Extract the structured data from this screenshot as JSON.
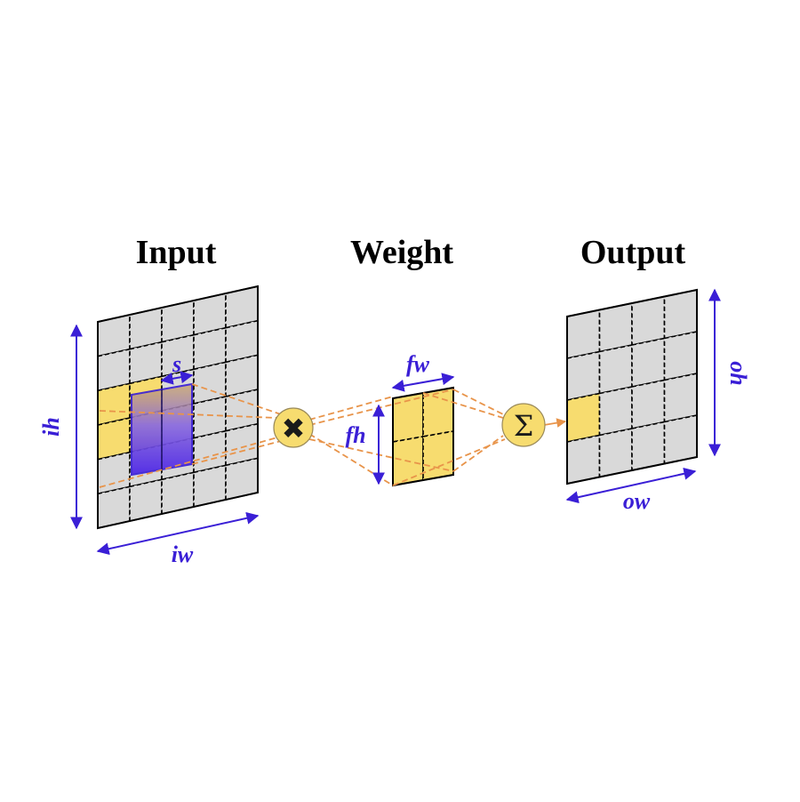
{
  "titles": {
    "input": "Input",
    "weight": "Weight",
    "output": "Output"
  },
  "dimensions": {
    "ih": "ih",
    "iw": "iw",
    "s": "s",
    "fh": "fh",
    "fw": "fw",
    "oh": "oh",
    "ow": "ow"
  },
  "operators": {
    "multiply": "✖",
    "sum": "Σ"
  },
  "grids": {
    "input": {
      "rows": 6,
      "cols": 5
    },
    "weight": {
      "rows": 2,
      "cols": 2
    },
    "output": {
      "rows": 4,
      "cols": 4
    }
  },
  "colors": {
    "cell": "#d9d9d9",
    "highlight": "#f7dc6f",
    "stride_window": "#5b2fe0",
    "dimension_arrows": "#3a1fd6",
    "connectors": "#e8944a"
  }
}
